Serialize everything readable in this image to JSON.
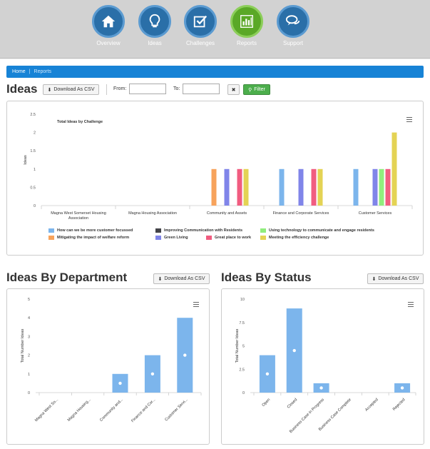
{
  "nav": {
    "items": [
      {
        "label": "Overview",
        "icon": "home-icon"
      },
      {
        "label": "Ideas",
        "icon": "lightbulb-icon"
      },
      {
        "label": "Challenges",
        "icon": "checkbox-icon"
      },
      {
        "label": "Reports",
        "icon": "bar-chart-icon",
        "active": true
      },
      {
        "label": "Support",
        "icon": "chat-bubbles-icon"
      }
    ]
  },
  "breadcrumb": {
    "home": "Home",
    "separator": "|",
    "current": "Reports"
  },
  "ideas": {
    "title": "Ideas",
    "download_label": "Download As CSV",
    "from_label": "From:",
    "to_label": "To:",
    "from_value": "",
    "to_value": "",
    "clear_label": "✖",
    "filter_label": "Filter"
  },
  "dept": {
    "title": "Ideas By Department",
    "download_label": "Download As CSV"
  },
  "status": {
    "title": "Ideas By Status",
    "download_label": "Download As CSV"
  },
  "colors": {
    "primary": "#1783d6",
    "nav_circle": "#2a6fa8",
    "nav_active": "#5aa827",
    "bar": "#7cb5ec",
    "filter_green": "#4cae4c"
  },
  "chart_data": [
    {
      "type": "bar",
      "title": "Total Ideas by Challenge",
      "xlabel": "",
      "ylabel": "Ideas",
      "ylim": [
        0,
        2.5
      ],
      "yticks": [
        "0",
        "0.5",
        "1",
        "1.5",
        "2",
        "2.5"
      ],
      "categories": [
        "Magna West Somerset Housing Association",
        "Magna Housing Association",
        "Community and Assets",
        "Finance and Corporate Services",
        "Customer Services"
      ],
      "series": [
        {
          "name": "How can we be more customer focussed",
          "color": "#7cb5ec",
          "values": [
            0,
            0,
            0,
            1,
            1
          ]
        },
        {
          "name": "Mitigating the impact of welfare reform",
          "color": "#f7a35c",
          "values": [
            0,
            0,
            1,
            0,
            0
          ]
        },
        {
          "name": "Improving Communication with Residents",
          "color": "#434348",
          "values": [
            0,
            0,
            0,
            0,
            0
          ]
        },
        {
          "name": "Green Living",
          "color": "#8085e9",
          "values": [
            0,
            0,
            1,
            1,
            1
          ]
        },
        {
          "name": "Using technology to communicate and engage residents",
          "color": "#90ed7d",
          "values": [
            0,
            0,
            0,
            0,
            1
          ]
        },
        {
          "name": "Great place to work",
          "color": "#f15c80",
          "values": [
            0,
            0,
            1,
            1,
            1
          ]
        },
        {
          "name": "Meeting the efficiency challenge",
          "color": "#e4d354",
          "values": [
            0,
            0,
            1,
            1,
            2
          ]
        }
      ],
      "legend_position": "bottom"
    },
    {
      "type": "bar",
      "title": "",
      "xlabel": "",
      "ylabel": "Total Number Ideas",
      "ylim": [
        0,
        5
      ],
      "yticks": [
        "0",
        "1",
        "2",
        "3",
        "4",
        "5"
      ],
      "categories": [
        "Magna West So...",
        "Magna Housing...",
        "Community and...",
        "Finance and Cor...",
        "Customer Servi..."
      ],
      "values": [
        0,
        0,
        1,
        2,
        4
      ]
    },
    {
      "type": "bar",
      "title": "",
      "xlabel": "",
      "ylabel": "Total Number Ideas",
      "ylim": [
        0,
        10
      ],
      "yticks": [
        "0",
        "2.5",
        "5",
        "7.5",
        "10"
      ],
      "categories": [
        "Open",
        "Closed",
        "Business Case in Progress",
        "Business Case Complete",
        "Accepted",
        "Rejected"
      ],
      "values": [
        4,
        9,
        1,
        0,
        0,
        1
      ]
    }
  ]
}
